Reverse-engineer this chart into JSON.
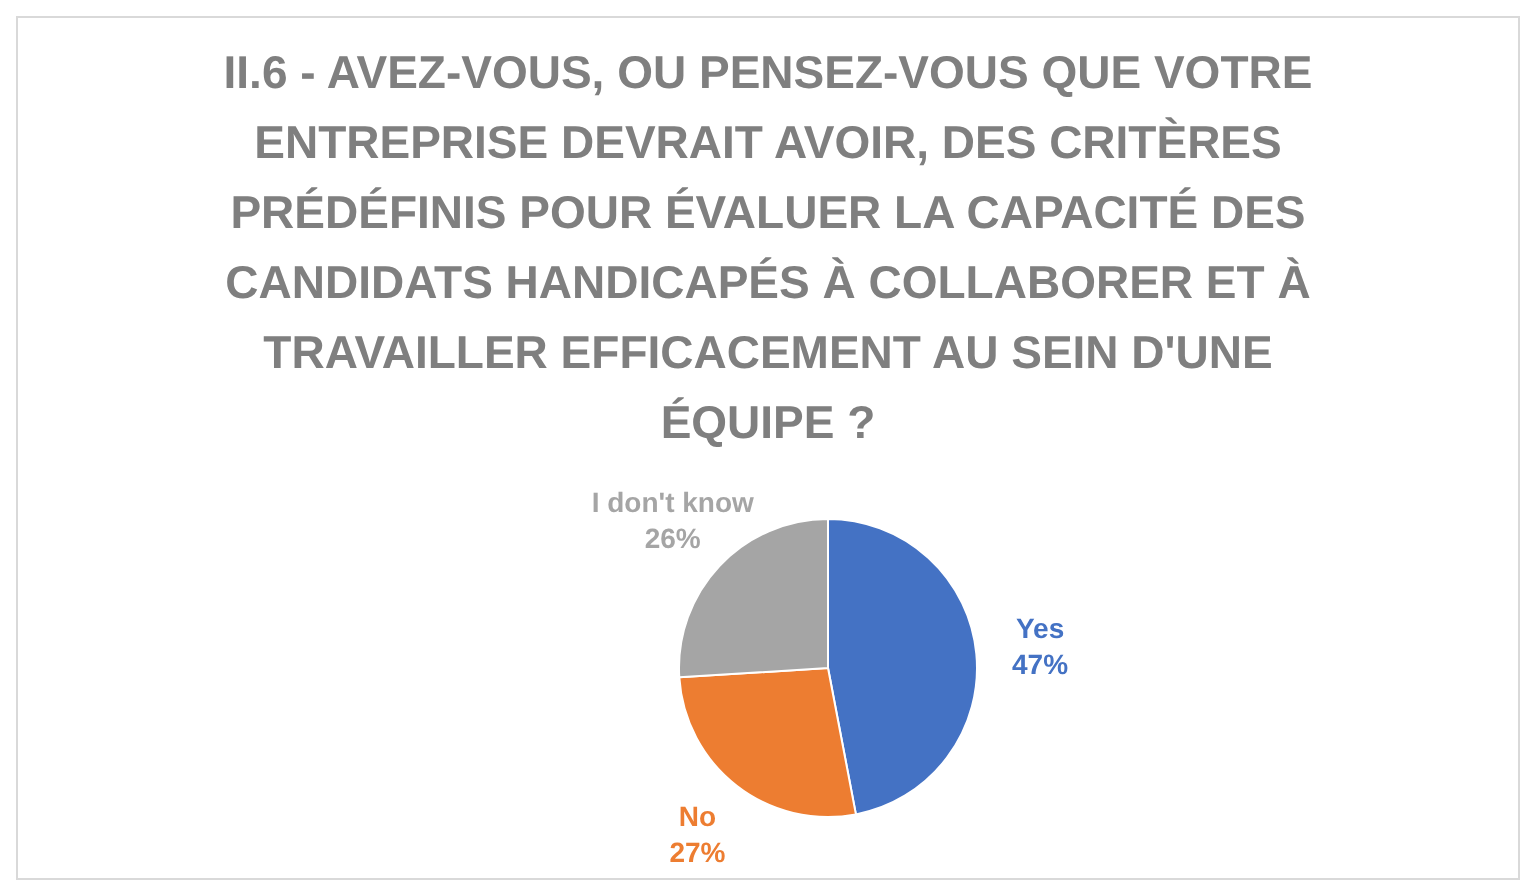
{
  "chart_data": {
    "type": "pie",
    "title": "II.6 - AVEZ-VOUS, OU PENSEZ-VOUS QUE VOTRE ENTREPRISE DEVRAIT AVOIR, DES CRITÈRES PRÉDÉFINIS POUR ÉVALUER LA CAPACITÉ DES CANDIDATS HANDICAPÉS À COLLABORER ET À TRAVAILLER EFFICACEMENT AU SEIN D'UNE ÉQUIPE ?",
    "categories": [
      "Yes",
      "No",
      "I don't know"
    ],
    "values": [
      47,
      27,
      26
    ],
    "colors": [
      "#4472c4",
      "#ed7d31",
      "#a5a5a5"
    ],
    "value_labels": [
      "47%",
      "27%",
      "26%"
    ],
    "legend": false
  }
}
